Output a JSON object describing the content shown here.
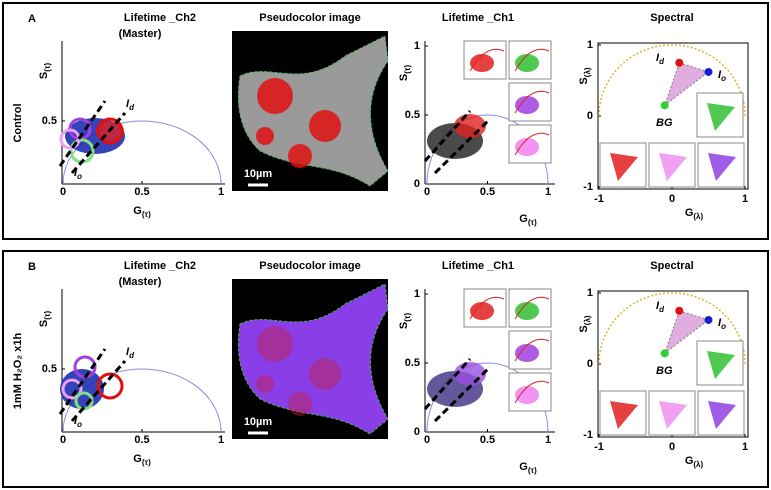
{
  "panels": [
    {
      "letter": "A",
      "condition": "Control",
      "lifetime_ch2": {
        "title": "Lifetime _Ch2",
        "subtitle": "(Master)",
        "x_label": {
          "main": "G",
          "sub": "(τ)"
        },
        "y_label": {
          "main": "S",
          "sub": "(τ)"
        },
        "xticks": [
          0,
          0.5,
          1
        ],
        "yticks": [
          0.5
        ],
        "markers": [
          {
            "main": "I",
            "sub": "d"
          },
          {
            "main": "I",
            "sub": "o"
          }
        ]
      },
      "image": {
        "title": "Pseudocolor image",
        "scale_bar": "10µm"
      },
      "lifetime_ch1": {
        "title": "Lifetime _Ch1",
        "x_label": {
          "main": "G",
          "sub": "(τ)"
        },
        "y_label": {
          "main": "S",
          "sub": "(τ)"
        },
        "xticks": [
          0,
          0.5,
          1
        ],
        "yticks": [
          0,
          0.5,
          1
        ]
      },
      "spectral": {
        "title": "Spectral",
        "x_label": {
          "main": "G",
          "sub": "(λ)"
        },
        "y_label": {
          "main": "S",
          "sub": "(λ)"
        },
        "xticks": [
          -1,
          0,
          1
        ],
        "yticks": [
          -1,
          0,
          1
        ],
        "markers": [
          {
            "main": "I",
            "sub": "d"
          },
          {
            "main": "I",
            "sub": "o"
          },
          {
            "main": "BG"
          }
        ]
      }
    },
    {
      "letter": "B",
      "condition": "1mM H₂O₂ x1h",
      "lifetime_ch2": {
        "title": "Lifetime _Ch2",
        "subtitle": "(Master)",
        "x_label": {
          "main": "G",
          "sub": "(τ)"
        },
        "y_label": {
          "main": "S",
          "sub": "(τ)"
        },
        "xticks": [
          0,
          0.5,
          1
        ],
        "yticks": [
          0.5
        ],
        "markers": [
          {
            "main": "I",
            "sub": "d"
          },
          {
            "main": "I",
            "sub": "o"
          }
        ]
      },
      "image": {
        "title": "Pseudocolor image",
        "scale_bar": "10µm"
      },
      "lifetime_ch1": {
        "title": "Lifetime _Ch1",
        "x_label": {
          "main": "G",
          "sub": "(τ)"
        },
        "y_label": {
          "main": "S",
          "sub": "(τ)"
        },
        "xticks": [
          0,
          0.5,
          1
        ],
        "yticks": [
          0,
          0.5,
          1
        ]
      },
      "spectral": {
        "title": "Spectral",
        "x_label": {
          "main": "G",
          "sub": "(λ)"
        },
        "y_label": {
          "main": "S",
          "sub": "(λ)"
        },
        "xticks": [
          -1,
          0,
          1
        ],
        "yticks": [
          -1,
          0,
          1
        ],
        "markers": [
          {
            "main": "I",
            "sub": "d"
          },
          {
            "main": "I",
            "sub": "o"
          },
          {
            "main": "BG"
          }
        ]
      }
    }
  ]
}
